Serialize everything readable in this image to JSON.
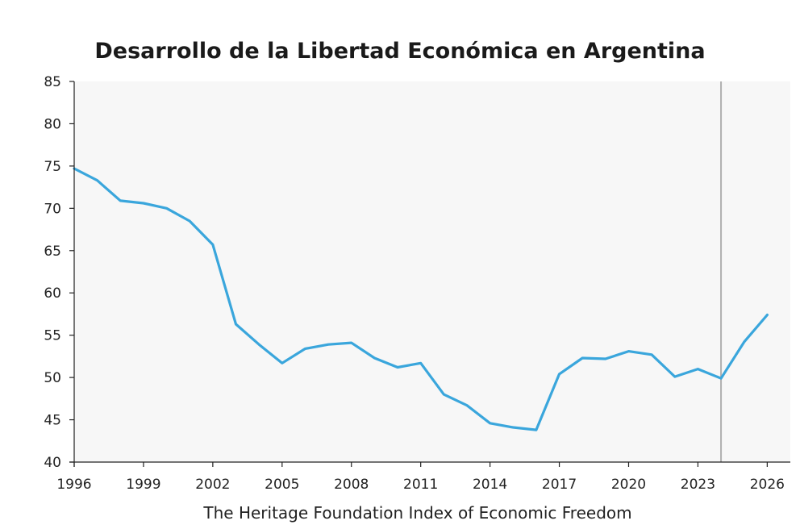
{
  "chart_data": {
    "type": "line",
    "title": "Desarrollo de la Libertad Económica en Argentina",
    "xlabel": "The Heritage Foundation Index of Economic Freedom",
    "ylabel": "",
    "xlim": [
      1996,
      2027
    ],
    "ylim": [
      40,
      85
    ],
    "x_ticks": [
      1996,
      1999,
      2002,
      2005,
      2008,
      2011,
      2014,
      2017,
      2020,
      2023,
      2026
    ],
    "y_ticks": [
      40,
      45,
      50,
      55,
      60,
      65,
      70,
      75,
      80,
      85
    ],
    "grid": false,
    "reference_line_x": 2024,
    "colors": {
      "line": "#3aa6dc",
      "background": "#f7f7f7",
      "reference_line": "#b0b0b0",
      "axis": "#222222"
    },
    "series": [
      {
        "x": [
          1996,
          1997,
          1998,
          1999,
          2000,
          2001,
          2002,
          2003,
          2004,
          2005,
          2006,
          2007,
          2008,
          2009,
          2010,
          2011,
          2012,
          2013,
          2014,
          2015,
          2016,
          2017,
          2018,
          2019,
          2020,
          2021,
          2022,
          2023,
          2024,
          2025,
          2026
        ],
        "y": [
          74.7,
          73.3,
          70.9,
          70.6,
          70.0,
          68.5,
          65.7,
          56.3,
          53.9,
          51.7,
          53.4,
          53.9,
          54.1,
          52.3,
          51.2,
          51.7,
          48.0,
          46.7,
          44.6,
          44.1,
          43.8,
          50.4,
          52.3,
          52.2,
          53.1,
          52.7,
          50.1,
          51.0,
          49.9,
          54.2,
          57.4
        ]
      }
    ]
  }
}
